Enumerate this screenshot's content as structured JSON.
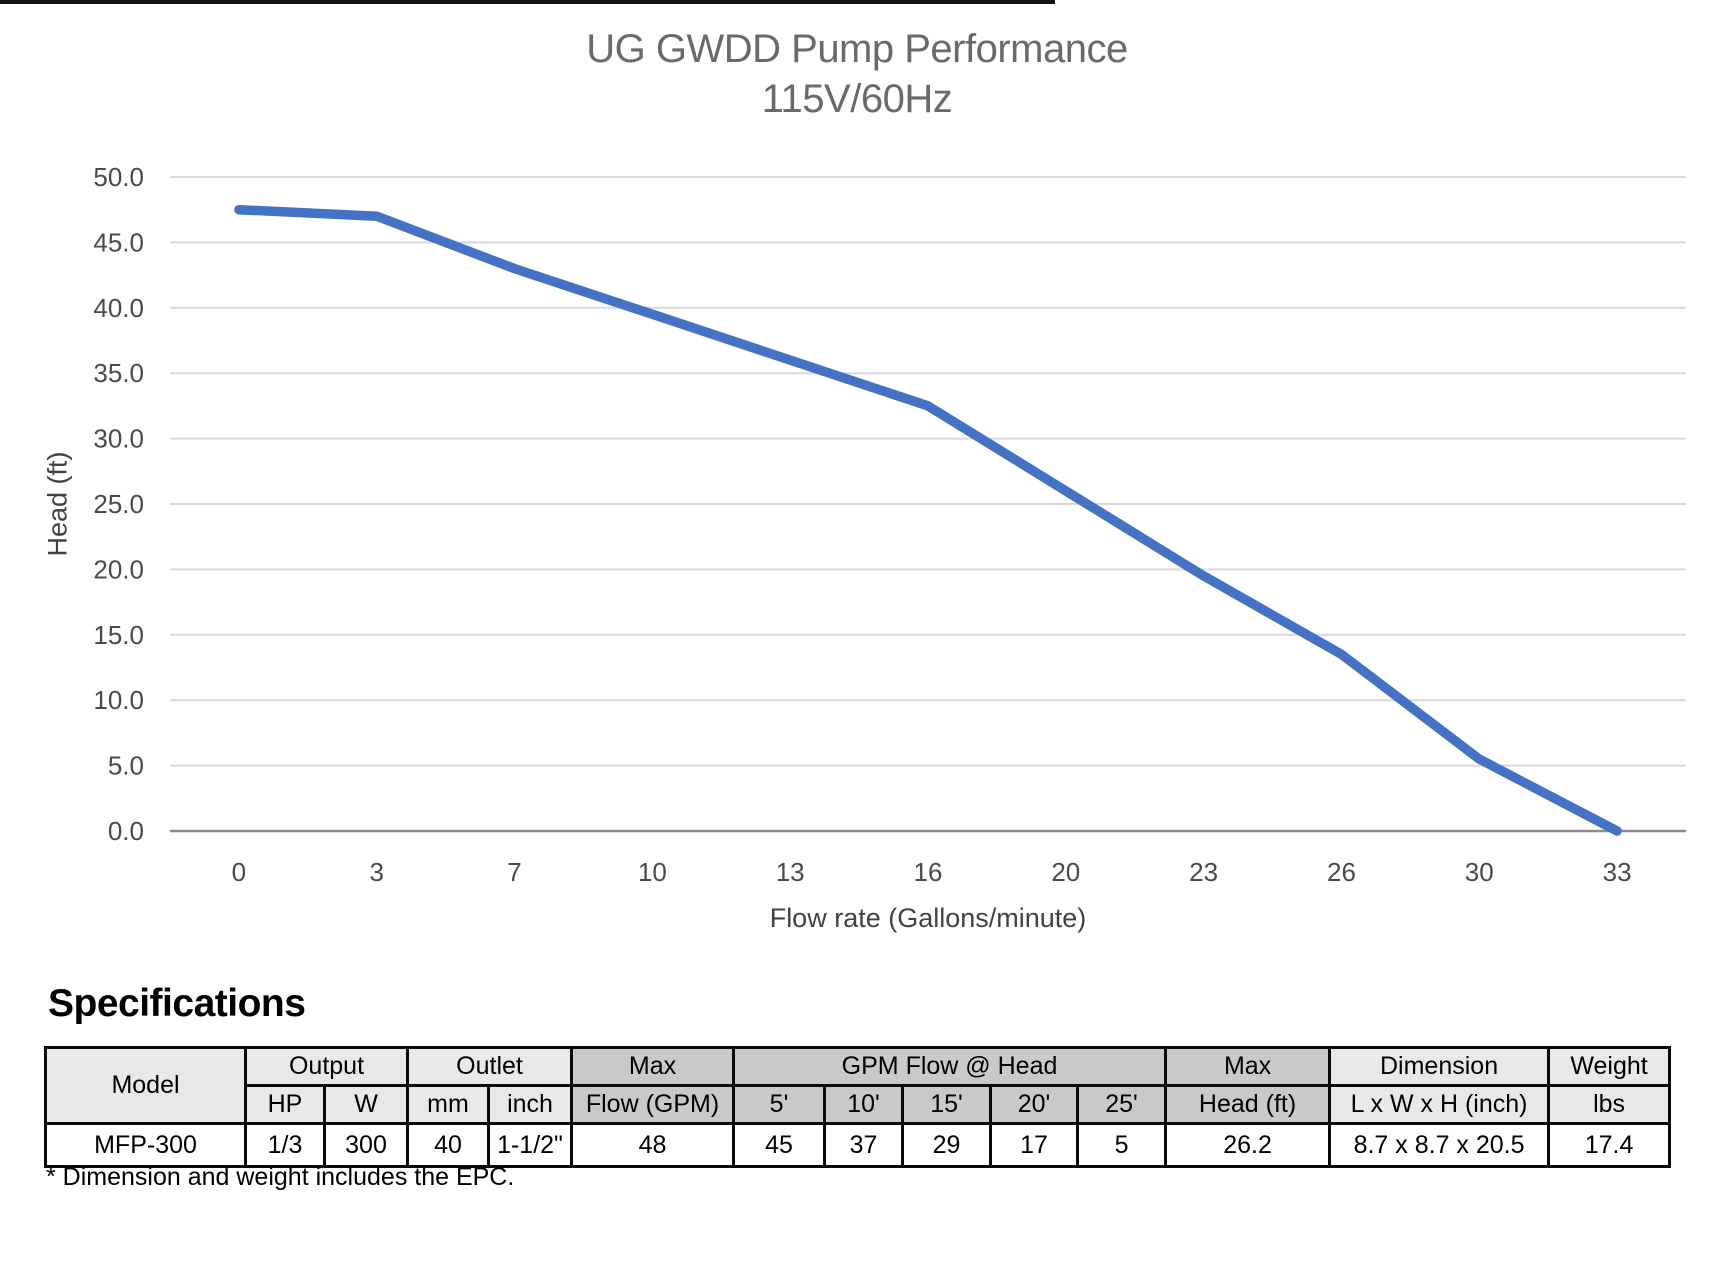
{
  "chart_data": {
    "type": "line",
    "title": "UG GWDD Pump Performance",
    "subtitle": "115V/60Hz",
    "xlabel": "Flow rate (Gallons/minute)",
    "ylabel": "Head (ft)",
    "categories": [
      "0",
      "3",
      "7",
      "10",
      "13",
      "16",
      "20",
      "23",
      "26",
      "30",
      "33"
    ],
    "values": [
      47.5,
      47.0,
      43.0,
      39.5,
      36.0,
      32.5,
      26.0,
      19.5,
      13.5,
      5.5,
      0.0
    ],
    "y_ticks": [
      50,
      45,
      40,
      35,
      30,
      25,
      20,
      15,
      10,
      5,
      0
    ],
    "ylim": [
      0,
      50
    ],
    "grid": true,
    "legend": "none",
    "line_color": "#4472C4",
    "grid_color": "#D9D9D9",
    "axis_line_color": "#8C8C8C",
    "tick_label_color": "#4A4A4A"
  },
  "spec": {
    "heading": "Specifications",
    "footnote": "* Dimension and weight includes the EPC.",
    "header_row1": {
      "model": "Model",
      "output": "Output",
      "outlet": "Outlet",
      "max_flow": "Max",
      "gpm_at_head": "GPM Flow @ Head",
      "max_head": "Max",
      "dimension": "Dimension",
      "weight": "Weight"
    },
    "header_row2": {
      "hp": "HP",
      "w": "W",
      "mm": "mm",
      "inch": "inch",
      "flow_gpm": "Flow (GPM)",
      "h5": "5'",
      "h10": "10'",
      "h15": "15'",
      "h20": "20'",
      "h25": "25'",
      "head_ft": "Head (ft)",
      "lwh": "L x W x H (inch)",
      "lbs": "lbs"
    },
    "row": {
      "model": "MFP-300",
      "hp": "1/3",
      "w": "300",
      "mm": "40",
      "inch": "1-1/2\"",
      "flow_gpm": "48",
      "f5": "45",
      "f10": "37",
      "f15": "29",
      "f20": "17",
      "f25": "5",
      "max_head": "26.2",
      "dim": "8.7 x 8.7 x 20.5",
      "weight": "17.4"
    }
  }
}
